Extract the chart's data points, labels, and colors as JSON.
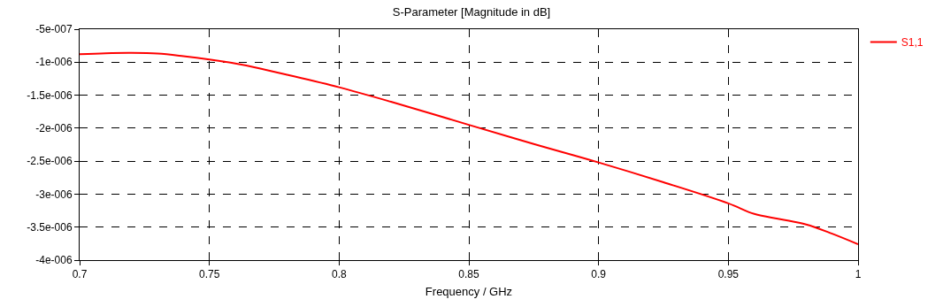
{
  "chart_data": {
    "type": "line",
    "title": "S-Parameter [Magnitude in dB]",
    "xlabel": "Frequency / GHz",
    "x": [
      0.7,
      0.71,
      0.72,
      0.73,
      0.74,
      0.75,
      0.76,
      0.77,
      0.78,
      0.8,
      0.82,
      0.85,
      0.875,
      0.9,
      0.925,
      0.95,
      0.96,
      0.97,
      0.98,
      0.99,
      1.0
    ],
    "series": [
      {
        "name": "S1,1",
        "color": "#ff0000",
        "values": [
          -8.8e-07,
          -8.65e-07,
          -8.6e-07,
          -8.7e-07,
          -9.1e-07,
          -9.6e-07,
          -1.02e-06,
          -1.1e-06,
          -1.19e-06,
          -1.38e-06,
          -1.6e-06,
          -1.95e-06,
          -2.24e-06,
          -2.52e-06,
          -2.82e-06,
          -3.14e-06,
          -3.3e-06,
          -3.38e-06,
          -3.46e-06,
          -3.6e-06,
          -3.76e-06
        ]
      }
    ],
    "xlim": [
      0.7,
      1.0
    ],
    "xticks": [
      0.7,
      0.75,
      0.8,
      0.85,
      0.9,
      0.95,
      1
    ],
    "ylim": [
      -4e-06,
      -5e-07
    ],
    "yticks": [
      {
        "value": -4e-06,
        "label": "-4e-006"
      },
      {
        "value": -3.5e-06,
        "label": "-3.5e-006"
      },
      {
        "value": -3e-06,
        "label": "-3e-006"
      },
      {
        "value": -2.5e-06,
        "label": "-2.5e-006"
      },
      {
        "value": -2e-06,
        "label": "-2e-006"
      },
      {
        "value": -1.5e-06,
        "label": "-1.5e-006"
      },
      {
        "value": -1e-06,
        "label": "-1e-006"
      },
      {
        "value": -5e-07,
        "label": "-5e-007"
      }
    ],
    "grid": true,
    "legend": "top right",
    "line_style": "solid",
    "marker": "none"
  }
}
